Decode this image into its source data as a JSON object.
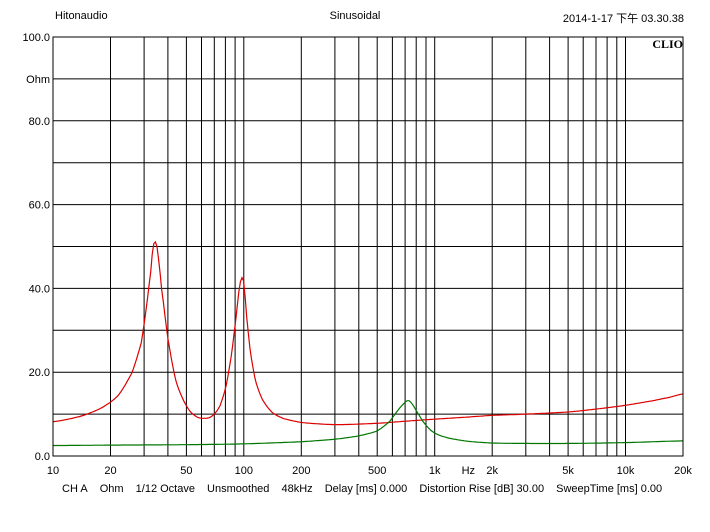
{
  "header": {
    "left": "Hitonaudio",
    "center": "Sinusoidal",
    "right": "2014-1-17 下午 03.30.38"
  },
  "brand": "CLIO",
  "chart_data": {
    "type": "line",
    "x_scale": "log",
    "xlim": [
      10,
      20000
    ],
    "ylim": [
      0,
      100
    ],
    "grid": true,
    "y_tick_labels": [
      {
        "value": 100,
        "label": "100.0"
      },
      {
        "value": 90,
        "label": "Ohm"
      },
      {
        "value": 80,
        "label": "80.0"
      },
      {
        "value": 60,
        "label": "60.0"
      },
      {
        "value": 40,
        "label": "40.0"
      },
      {
        "value": 20,
        "label": "20.0"
      },
      {
        "value": 0,
        "label": "0.0"
      }
    ],
    "x_tick_labels": [
      {
        "value": 10,
        "label": "10"
      },
      {
        "value": 20,
        "label": "20"
      },
      {
        "value": 50,
        "label": "50"
      },
      {
        "value": 100,
        "label": "100"
      },
      {
        "value": 200,
        "label": "200"
      },
      {
        "value": 500,
        "label": "500"
      },
      {
        "value": 1000,
        "label": "1k"
      },
      {
        "value": 1500,
        "label": "Hz"
      },
      {
        "value": 2000,
        "label": "2k"
      },
      {
        "value": 5000,
        "label": "5k"
      },
      {
        "value": 10000,
        "label": "10k"
      },
      {
        "value": 20000,
        "label": "20k"
      }
    ],
    "series": [
      {
        "color": "#dd0000",
        "points": [
          [
            10,
            8.2
          ],
          [
            14,
            9.5
          ],
          [
            18,
            11.5
          ],
          [
            22,
            14.5
          ],
          [
            26,
            20
          ],
          [
            29,
            27
          ],
          [
            31,
            36
          ],
          [
            32.5,
            44
          ],
          [
            33.5,
            50
          ],
          [
            34.5,
            51
          ],
          [
            35.5,
            48
          ],
          [
            37,
            40
          ],
          [
            40,
            28
          ],
          [
            44,
            18
          ],
          [
            50,
            12
          ],
          [
            56,
            9.5
          ],
          [
            62,
            9.0
          ],
          [
            68,
            9.5
          ],
          [
            75,
            12
          ],
          [
            81,
            17
          ],
          [
            86,
            24
          ],
          [
            90,
            31
          ],
          [
            93,
            37
          ],
          [
            95.5,
            41
          ],
          [
            97.5,
            42.5
          ],
          [
            99.5,
            42
          ],
          [
            101.5,
            38
          ],
          [
            104,
            32
          ],
          [
            108,
            25
          ],
          [
            115,
            18
          ],
          [
            125,
            13.5
          ],
          [
            140,
            10.5
          ],
          [
            160,
            9
          ],
          [
            200,
            8
          ],
          [
            300,
            7.5
          ],
          [
            500,
            7.8
          ],
          [
            700,
            8.3
          ],
          [
            1000,
            8.8
          ],
          [
            1500,
            9.3
          ],
          [
            2000,
            9.7
          ],
          [
            3000,
            10
          ],
          [
            5000,
            10.5
          ],
          [
            7000,
            11.2
          ],
          [
            10000,
            12.1
          ],
          [
            14000,
            13.2
          ],
          [
            17000,
            14
          ],
          [
            20000,
            14.8
          ]
        ]
      },
      {
        "color": "#007700",
        "points": [
          [
            10,
            2.5
          ],
          [
            20,
            2.6
          ],
          [
            50,
            2.7
          ],
          [
            100,
            2.9
          ],
          [
            200,
            3.4
          ],
          [
            300,
            4.0
          ],
          [
            400,
            4.8
          ],
          [
            500,
            6.0
          ],
          [
            580,
            8.2
          ],
          [
            640,
            10.8
          ],
          [
            690,
            12.5
          ],
          [
            720,
            13.2
          ],
          [
            750,
            12.8
          ],
          [
            800,
            10.8
          ],
          [
            870,
            8.2
          ],
          [
            950,
            6.2
          ],
          [
            1050,
            5.0
          ],
          [
            1200,
            4.2
          ],
          [
            1500,
            3.5
          ],
          [
            2000,
            3.1
          ],
          [
            3000,
            3.0
          ],
          [
            5000,
            3.0
          ],
          [
            10000,
            3.2
          ],
          [
            20000,
            3.6
          ]
        ]
      }
    ]
  },
  "footer": {
    "channel": "CH A",
    "unit": "Ohm",
    "smoothing": "1/12 Octave",
    "smoothing_mode": "Unsmoothed",
    "sample_rate": "48kHz",
    "delay": "Delay [ms] 0.000",
    "distortion_rise": "Distortion Rise [dB] 30.00",
    "sweep_time": "SweepTime [ms] 0.00"
  }
}
